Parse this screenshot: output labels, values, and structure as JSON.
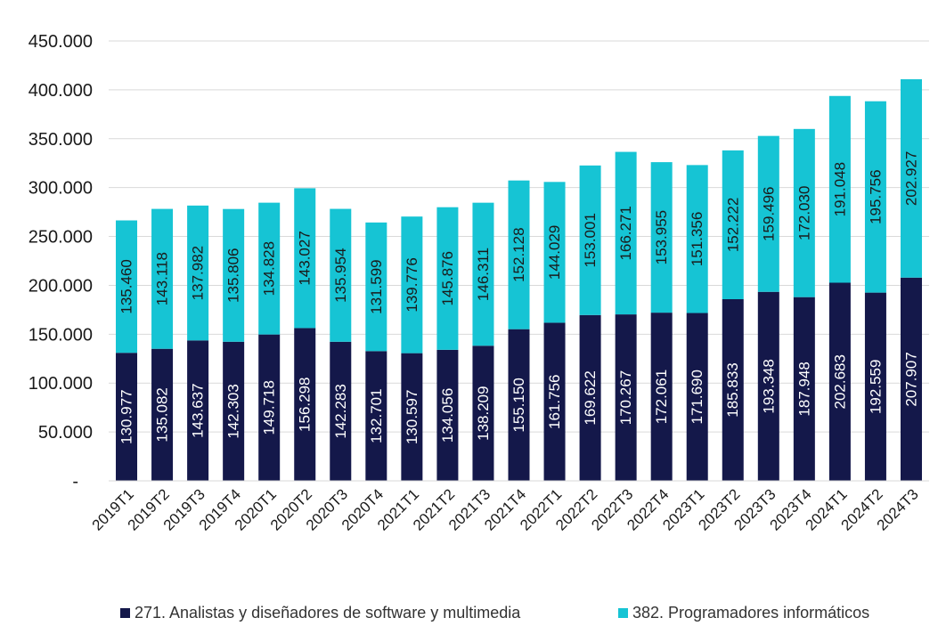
{
  "chart_data": {
    "type": "bar",
    "stacked": true,
    "categories": [
      "2019T1",
      "2019T2",
      "2019T3",
      "2019T4",
      "2020T1",
      "2020T2",
      "2020T3",
      "2020T4",
      "2021T1",
      "2021T2",
      "2021T3",
      "2021T4",
      "2022T1",
      "2022T2",
      "2022T3",
      "2022T4",
      "2023T1",
      "2023T2",
      "2023T3",
      "2023T4",
      "2024T1",
      "2024T2",
      "2024T3"
    ],
    "series": [
      {
        "name": "271. Analistas y diseñadores de software y multimedia",
        "color": "#14184a",
        "label_color": "#ffffff",
        "values": [
          130977,
          135082,
          143637,
          142303,
          149718,
          156298,
          142283,
          132701,
          130597,
          134056,
          138209,
          155150,
          161756,
          169622,
          170267,
          172061,
          171690,
          185833,
          193348,
          187948,
          202683,
          192559,
          207907
        ],
        "labels": [
          "130.977",
          "135.082",
          "143.637",
          "142.303",
          "149.718",
          "156.298",
          "142.283",
          "132.701",
          "130.597",
          "134.056",
          "138.209",
          "155.150",
          "161.756",
          "169.622",
          "170.267",
          "172.061",
          "171.690",
          "185.833",
          "193.348",
          "187.948",
          "202.683",
          "192.559",
          "207.907"
        ]
      },
      {
        "name": "382. Programadores informáticos",
        "color": "#16c4d4",
        "label_color": "#1a1a1a",
        "values": [
          135460,
          143118,
          137982,
          135806,
          134828,
          143027,
          135954,
          131599,
          139776,
          145876,
          146311,
          152128,
          144029,
          153001,
          166271,
          153955,
          151356,
          152222,
          159496,
          172030,
          191048,
          195756,
          202927
        ],
        "labels": [
          "135.460",
          "143.118",
          "137.982",
          "135.806",
          "134.828",
          "143.027",
          "135.954",
          "131.599",
          "139.776",
          "145.876",
          "146.311",
          "152.128",
          "144.029",
          "153.001",
          "166.271",
          "153.955",
          "151.356",
          "152.222",
          "159.496",
          "172.030",
          "191.048",
          "195.756",
          "202.927"
        ]
      }
    ],
    "ylim": [
      0,
      450000
    ],
    "yticks": [
      0,
      50000,
      100000,
      150000,
      200000,
      250000,
      300000,
      350000,
      400000,
      450000
    ],
    "ytick_labels": [
      "-",
      "50.000",
      "100.000",
      "150.000",
      "200.000",
      "250.000",
      "300.000",
      "350.000",
      "400.000",
      "450.000"
    ],
    "grid": true,
    "legend_position": "bottom",
    "title": "",
    "xlabel": "",
    "ylabel": ""
  }
}
